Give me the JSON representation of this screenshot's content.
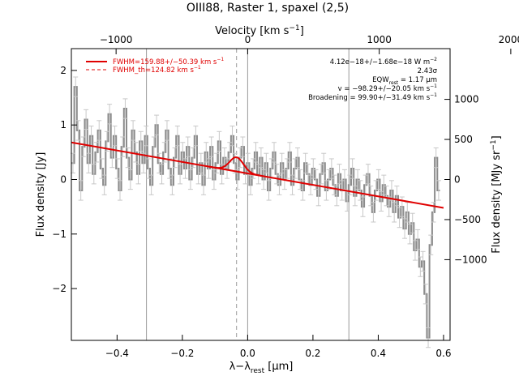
{
  "chart_data": {
    "type": "line",
    "title": "OIII88, Raster 1, spaxel (2,5)",
    "xlabel_main": "λ−λ",
    "xlabel_sub": "rest",
    "xlabel_unit": "[μm]",
    "ylabel_left": "Flux density [Jy]",
    "ylabel_right": "Flux density [MJy sr",
    "ylabel_right_sup": "−1",
    "ylabel_right_end": "]",
    "xlabel_top": "Velocity [km s",
    "xlabel_top_sup": "−1",
    "xlabel_top_end": "]",
    "xlim": [
      -0.54,
      0.62
    ],
    "ylim": [
      -2.95,
      2.4
    ],
    "x_ticks": [
      -0.4,
      -0.2,
      0.0,
      0.2,
      0.4,
      0.6
    ],
    "x_tick_labels": [
      "−0.4",
      "−0.2",
      "0.0",
      "0.2",
      "0.4",
      "0.6"
    ],
    "y_ticks": [
      -2,
      -1,
      0,
      1,
      2
    ],
    "y_tick_labels": [
      "−2",
      "−1",
      "0",
      "1",
      "2"
    ],
    "top_ticks": [
      -1000,
      0,
      1000,
      2000
    ],
    "top_tick_labels": [
      "−1000",
      "0",
      "1000",
      "2000"
    ],
    "top_tick_x": [
      -0.403,
      0.0,
      0.403,
      0.806
    ],
    "right_ticks": [
      -1000,
      -500,
      0,
      500,
      1000
    ],
    "right_tick_labels": [
      "−1000",
      "−500",
      "0",
      "500",
      "1000"
    ],
    "right_tick_y": [
      -1.47,
      -0.735,
      0.0,
      0.735,
      1.47
    ],
    "vlines_solid": [
      -0.31,
      0.0,
      0.31
    ],
    "vline_dashed": -0.034,
    "legend": [
      {
        "label": "FWHM=159.88+/−50.39 km s",
        "sup": "−1",
        "style": "solid",
        "color": "#e00000"
      },
      {
        "label": "FWHM_th=124.82 km s",
        "sup": "−1",
        "style": "dashed",
        "color": "#e00000"
      }
    ],
    "annotations": [
      {
        "text": "4.12e−18+/−1.68e−18 W m",
        "sup": "−2"
      },
      {
        "text": "2.43σ",
        "sup": ""
      },
      {
        "text": "EQW",
        "sub": "rest",
        "rest": " = 1.17 μm"
      },
      {
        "text": "v = −98.29+/−20.05 km s",
        "sup": "−1"
      },
      {
        "text": "Broadening = 99.90+/−31.49 km s",
        "sup": "−1"
      }
    ],
    "fit": {
      "continuum": {
        "x0": -0.54,
        "y0": 0.68,
        "x1": 0.6,
        "y1": -0.52
      },
      "gaussian": {
        "center": -0.034,
        "amplitude": 0.26,
        "sigma": 0.021
      },
      "color": "#e00000"
    },
    "series": [
      {
        "color": "#8c8c8c",
        "x": [
          -0.535,
          -0.527,
          -0.519,
          -0.511,
          -0.503,
          -0.495,
          -0.487,
          -0.479,
          -0.471,
          -0.463,
          -0.455,
          -0.447,
          -0.439,
          -0.431,
          -0.423,
          -0.415,
          -0.407,
          -0.399,
          -0.391,
          -0.383,
          -0.375,
          -0.367,
          -0.359,
          -0.351,
          -0.343,
          -0.335,
          -0.327,
          -0.319,
          -0.311,
          -0.303,
          -0.295,
          -0.287,
          -0.279,
          -0.271,
          -0.263,
          -0.255,
          -0.247,
          -0.239,
          -0.231,
          -0.223,
          -0.215,
          -0.207,
          -0.199,
          -0.191,
          -0.183,
          -0.175,
          -0.167,
          -0.159,
          -0.151,
          -0.143,
          -0.135,
          -0.127,
          -0.119,
          -0.111,
          -0.103,
          -0.095,
          -0.087,
          -0.079,
          -0.071,
          -0.063,
          -0.055,
          -0.047,
          -0.039,
          -0.031,
          -0.023,
          -0.015,
          -0.007,
          0.001,
          0.009,
          0.017,
          0.025,
          0.033,
          0.041,
          0.049,
          0.057,
          0.065,
          0.073,
          0.081,
          0.089,
          0.097,
          0.105,
          0.113,
          0.121,
          0.129,
          0.137,
          0.145,
          0.153,
          0.161,
          0.169,
          0.177,
          0.185,
          0.193,
          0.201,
          0.209,
          0.217,
          0.225,
          0.233,
          0.241,
          0.249,
          0.257,
          0.265,
          0.273,
          0.281,
          0.289,
          0.297,
          0.305,
          0.313,
          0.321,
          0.329,
          0.337,
          0.345,
          0.353,
          0.361,
          0.369,
          0.377,
          0.385,
          0.393,
          0.401,
          0.409,
          0.417,
          0.425,
          0.433,
          0.441,
          0.449,
          0.457,
          0.465,
          0.473,
          0.481,
          0.489,
          0.497,
          0.505,
          0.513,
          0.521,
          0.529,
          0.537,
          0.545,
          0.553,
          0.561,
          0.569,
          0.577,
          0.585
        ],
        "y": [
          0.3,
          1.7,
          0.9,
          -0.2,
          0.6,
          1.1,
          0.3,
          0.8,
          0.1,
          0.5,
          0.9,
          0.2,
          -0.1,
          0.7,
          1.2,
          0.4,
          0.8,
          0.2,
          -0.2,
          0.6,
          1.3,
          0.4,
          0.0,
          0.9,
          0.5,
          0.1,
          0.7,
          0.3,
          0.8,
          0.2,
          -0.1,
          0.6,
          1.0,
          0.3,
          0.1,
          0.5,
          0.9,
          0.2,
          -0.1,
          0.4,
          0.8,
          0.1,
          0.5,
          0.2,
          0.6,
          0.0,
          0.4,
          0.8,
          0.1,
          0.3,
          -0.1,
          0.5,
          0.2,
          0.6,
          0.0,
          0.3,
          0.7,
          0.1,
          0.4,
          0.2,
          0.5,
          0.8,
          0.3,
          0.0,
          0.4,
          0.6,
          0.1,
          0.3,
          -0.1,
          0.2,
          0.5,
          0.1,
          0.4,
          0.0,
          0.3,
          -0.2,
          0.2,
          0.5,
          0.1,
          -0.1,
          0.3,
          0.0,
          0.2,
          0.5,
          -0.1,
          0.2,
          0.4,
          0.0,
          -0.2,
          0.3,
          0.1,
          -0.1,
          0.2,
          0.0,
          -0.3,
          0.1,
          0.3,
          -0.2,
          0.0,
          0.2,
          -0.1,
          -0.3,
          0.1,
          -0.2,
          0.0,
          -0.4,
          -0.1,
          0.2,
          -0.3,
          0.0,
          -0.2,
          -0.5,
          -0.1,
          0.1,
          -0.3,
          -0.6,
          -0.2,
          0.0,
          -0.4,
          -0.1,
          -0.3,
          -0.5,
          -0.2,
          -0.6,
          -0.3,
          -0.7,
          -0.5,
          -0.9,
          -0.6,
          -1.0,
          -0.8,
          -1.3,
          -1.1,
          -1.6,
          -1.5,
          -2.1,
          -2.9,
          -1.2,
          -0.6,
          0.4,
          -0.2
        ]
      }
    ]
  }
}
